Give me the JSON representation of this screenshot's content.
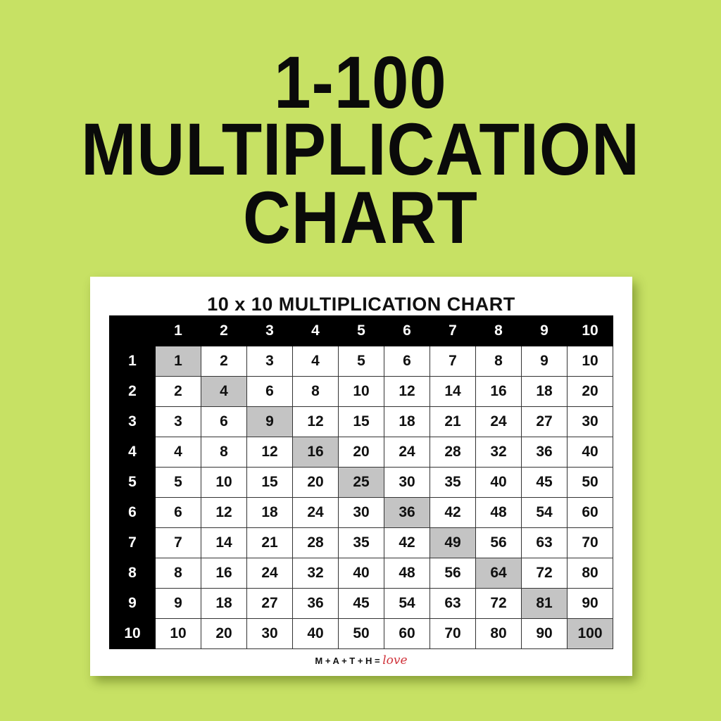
{
  "headline": {
    "line1": "1-100",
    "line2": "MULTIPLICATION",
    "line3": "CHART"
  },
  "card": {
    "title": "10 x 10 MULTIPLICATION CHART",
    "footer_text": "M + A + T + H =",
    "footer_love": "love"
  },
  "colors": {
    "background": "#c7e164",
    "header": "#000000",
    "diagonal_highlight": "#c4c4c4"
  },
  "chart_data": {
    "type": "table",
    "title": "10 x 10 MULTIPLICATION CHART",
    "column_headers": [
      "1",
      "2",
      "3",
      "4",
      "5",
      "6",
      "7",
      "8",
      "9",
      "10"
    ],
    "row_headers": [
      "1",
      "2",
      "3",
      "4",
      "5",
      "6",
      "7",
      "8",
      "9",
      "10"
    ],
    "rows": [
      [
        "1",
        "2",
        "3",
        "4",
        "5",
        "6",
        "7",
        "8",
        "9",
        "10"
      ],
      [
        "2",
        "4",
        "6",
        "8",
        "10",
        "12",
        "14",
        "16",
        "18",
        "20"
      ],
      [
        "3",
        "6",
        "9",
        "12",
        "15",
        "18",
        "21",
        "24",
        "27",
        "30"
      ],
      [
        "4",
        "8",
        "12",
        "16",
        "20",
        "24",
        "28",
        "32",
        "36",
        "40"
      ],
      [
        "5",
        "10",
        "15",
        "20",
        "25",
        "30",
        "35",
        "40",
        "45",
        "50"
      ],
      [
        "6",
        "12",
        "18",
        "24",
        "30",
        "36",
        "42",
        "48",
        "54",
        "60"
      ],
      [
        "7",
        "14",
        "21",
        "28",
        "35",
        "42",
        "49",
        "56",
        "63",
        "70"
      ],
      [
        "8",
        "16",
        "24",
        "32",
        "40",
        "48",
        "56",
        "64",
        "72",
        "80"
      ],
      [
        "9",
        "18",
        "27",
        "36",
        "45",
        "54",
        "63",
        "72",
        "81",
        "90"
      ],
      [
        "10",
        "20",
        "30",
        "40",
        "50",
        "60",
        "70",
        "80",
        "90",
        "100"
      ]
    ],
    "highlighted": "diagonal (squares)"
  }
}
